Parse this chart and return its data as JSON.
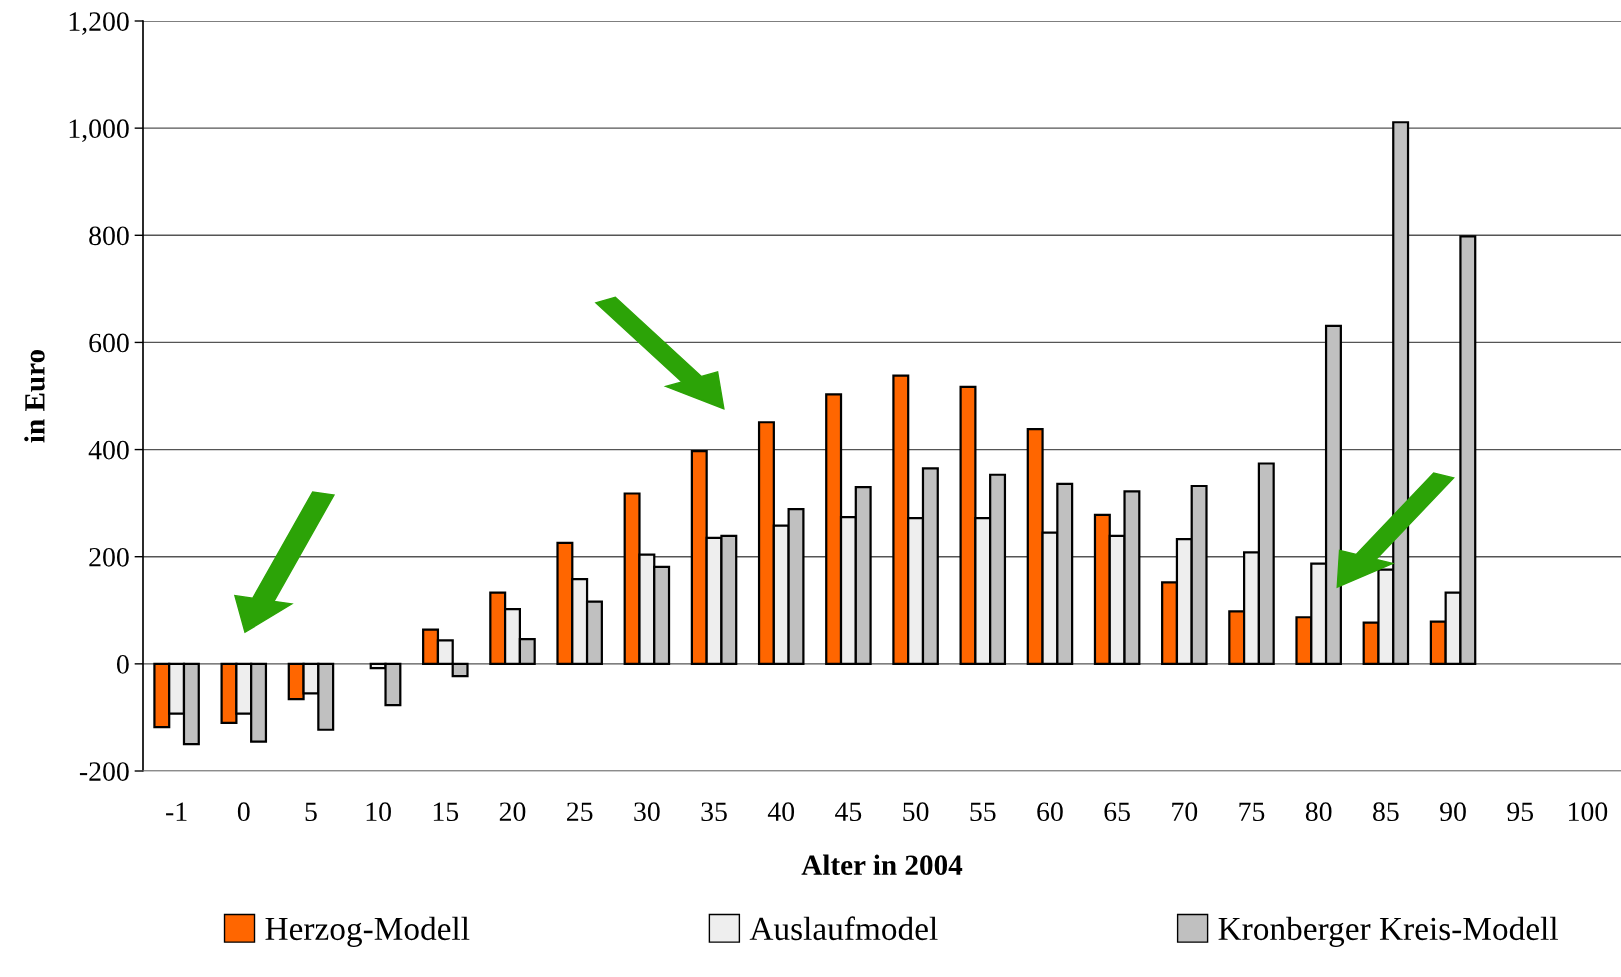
{
  "chart_data": {
    "type": "bar",
    "xlabel": "Alter in 2004",
    "ylabel": "in Euro",
    "categories": [
      "-1",
      "0",
      "5",
      "10",
      "15",
      "20",
      "25",
      "30",
      "35",
      "40",
      "45",
      "50",
      "55",
      "60",
      "65",
      "70",
      "75",
      "80",
      "85",
      "90",
      "95",
      "100"
    ],
    "series": [
      {
        "name": "Herzog-Modell",
        "color": "#ff6600",
        "values": [
          -118,
          -110,
          -66,
          null,
          64,
          133,
          226,
          318,
          397,
          451,
          503,
          538,
          517,
          438,
          278,
          152,
          98,
          87,
          77,
          79,
          null,
          null
        ]
      },
      {
        "name": "Auslaufmodel",
        "color": "#eeeeee",
        "values": [
          -93,
          -93,
          -55,
          -8,
          44,
          102,
          158,
          204,
          235,
          258,
          274,
          272,
          272,
          245,
          239,
          233,
          208,
          187,
          176,
          133,
          null,
          null
        ]
      },
      {
        "name": "Kronberger Kreis-Modell",
        "color": "#c0c0c0",
        "values": [
          -150,
          -145,
          -123,
          -77,
          -23,
          46,
          116,
          181,
          239,
          289,
          330,
          365,
          353,
          336,
          322,
          332,
          374,
          631,
          1011,
          798,
          null,
          null
        ]
      }
    ],
    "ylim": [
      -200,
      1200
    ],
    "yticks": [
      -200,
      0,
      200,
      400,
      600,
      800,
      {
        "value": 1000,
        "label": "1,000"
      },
      {
        "value": 1200,
        "label": "1,200"
      }
    ],
    "grid": "y",
    "legend": "bottom"
  }
}
